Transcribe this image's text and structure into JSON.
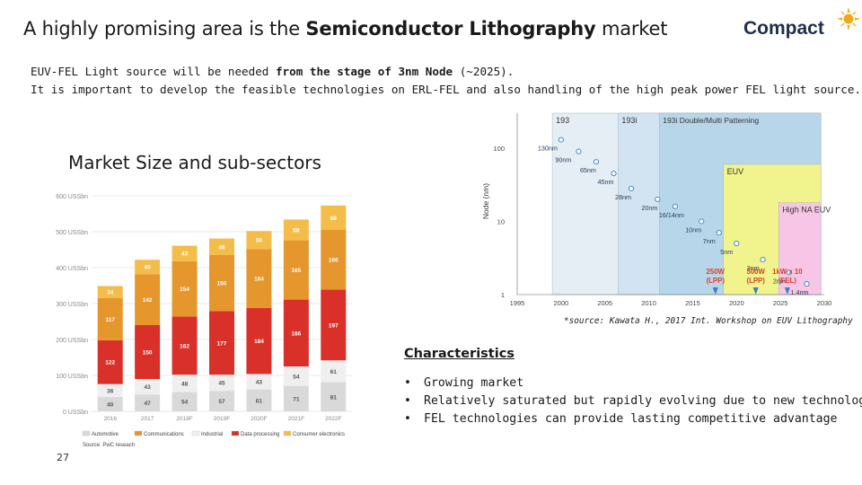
{
  "slide": {
    "title_prefix": "A highly promising area is the ",
    "title_bold": "Semiconductor Lithography",
    "title_suffix": " market",
    "logo_text": "Compact",
    "intro_line1_prefix": "EUV-FEL Light source will be needed ",
    "intro_line1_bold": "from the stage of 3nm Node",
    "intro_line1_suffix": " (~2025).",
    "intro_line2": "It is important to develop the feasible technologies on ERL-FEL and also handling of the high peak power FEL light source.",
    "section_title": "Market Size and sub-sectors",
    "page_number": "27",
    "source_note": "*source: Kawata H., 2017 Int. Workshop on EUV Lithography",
    "characteristics_title": "Characteristics",
    "characteristics": [
      "Growing market",
      "Relatively saturated but rapidly evolving due to new technologies",
      "FEL technologies can provide lasting competitive advantage"
    ]
  },
  "colors": {
    "automotive": "#d9d9d9",
    "communications": "#e5962d",
    "industrial": "#efefef",
    "data_processing": "#d9302a",
    "consumer_electronics": "#f4bd4a",
    "logo_text": "#1f2f4a",
    "sun": "#f3a81a"
  },
  "chart_data": [
    {
      "type": "bar",
      "stacked": true,
      "categories": [
        "2016",
        "2017",
        "2018F",
        "2019F",
        "2020F",
        "2021F",
        "2022F"
      ],
      "series": [
        {
          "name": "Automotive",
          "values": [
            40,
            47,
            54,
            57,
            61,
            71,
            81
          ]
        },
        {
          "name": "Industrial",
          "values": [
            36,
            43,
            48,
            45,
            43,
            54,
            61
          ]
        },
        {
          "name": "Data processing",
          "values": [
            122,
            150,
            162,
            177,
            184,
            186,
            197
          ]
        },
        {
          "name": "Communications",
          "values": [
            117,
            142,
            154,
            156,
            164,
            165,
            166
          ]
        },
        {
          "name": "Consumer electronics",
          "values": [
            34,
            40,
            43,
            46,
            50,
            58,
            68
          ]
        }
      ],
      "ytick_labels": [
        "0 USSbn",
        "100 USSbn",
        "200 USSbn",
        "300 USSbn",
        "400 USSbn",
        "500 USSbn",
        "600 USSbn"
      ],
      "ylim": [
        0,
        600
      ],
      "legend": [
        "Automotive",
        "Communications",
        "Industrial",
        "Data processing",
        "Consumer electronics"
      ],
      "legend_position": "bottom",
      "source": "Source: PwC reseach",
      "grid": true
    },
    {
      "type": "scatter",
      "x_scale": "linear",
      "y_scale": "log",
      "xlim": [
        1995,
        2030
      ],
      "ylim": [
        1,
        300
      ],
      "xtick_labels": [
        "1995",
        "2000",
        "2005",
        "2010",
        "2015",
        "2020",
        "2025",
        "2030"
      ],
      "ytick_labels": [
        "1",
        "10",
        "100"
      ],
      "ylabel": "Node (nm)",
      "points": [
        {
          "x": 2000,
          "y": 130,
          "label": "130nm"
        },
        {
          "x": 2002,
          "y": 90,
          "label": "90nm"
        },
        {
          "x": 2004,
          "y": 65,
          "label": "65nm"
        },
        {
          "x": 2006,
          "y": 45,
          "label": "45nm"
        },
        {
          "x": 2008,
          "y": 28,
          "label": "28nm"
        },
        {
          "x": 2011,
          "y": 20,
          "label": "20nm"
        },
        {
          "x": 2013,
          "y": 16,
          "label": "16/14nm"
        },
        {
          "x": 2016,
          "y": 10,
          "label": "10nm"
        },
        {
          "x": 2018,
          "y": 7,
          "label": "7nm"
        },
        {
          "x": 2020,
          "y": 5,
          "label": "5nm"
        },
        {
          "x": 2023,
          "y": 3,
          "label": "3nm"
        },
        {
          "x": 2026,
          "y": 2,
          "label": "2nm"
        },
        {
          "x": 2028,
          "y": 1.4,
          "label": "1.4nm"
        }
      ],
      "regions": [
        {
          "label": "193",
          "from": 1999,
          "to": 2029.6,
          "y_top": 300,
          "y_bottom": 1,
          "color": "#e6eef5"
        },
        {
          "label": "193i",
          "from": 2006.5,
          "to": 2029.6,
          "y_top": 300,
          "y_bottom": 1,
          "color": "#d2e4f1"
        },
        {
          "label": "193i Double/Multi Patterning",
          "from": 2011.2,
          "to": 2029.6,
          "y_top": 300,
          "y_bottom": 1,
          "color": "#b8d6ea"
        },
        {
          "label": "EUV",
          "from": 2018.5,
          "to": 2029.6,
          "y_top": 60,
          "y_bottom": 1,
          "color": "#f1f48c"
        },
        {
          "label": "High NA EUV",
          "from": 2024.8,
          "to": 2029.6,
          "y_top": 18,
          "y_bottom": 1,
          "color": "#f7c6e6"
        }
      ],
      "source_annotations": [
        {
          "x": 2018,
          "text_line1": "250W",
          "text_line2": "(LPP)",
          "color": "#d9402a"
        },
        {
          "x": 2022.6,
          "text_line1": "500W",
          "text_line2": "(LPP)",
          "color": "#d9402a"
        },
        {
          "x": 2026.2,
          "text_line1": "1kW x 10",
          "text_line2": "(FEL)",
          "color": "#d9402a"
        }
      ]
    }
  ]
}
